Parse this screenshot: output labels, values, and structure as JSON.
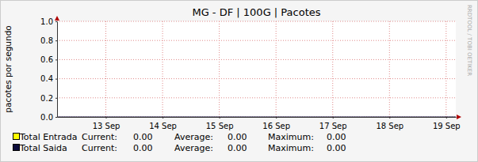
{
  "chart_data": {
    "type": "line",
    "title": "MG - DF | 100G | Pacotes",
    "y_label": "pacotes por segundo",
    "watermark": "RRDTOOL / TOBI OETIKER",
    "x": [
      12.64,
      13,
      14,
      15,
      16,
      17,
      18,
      19,
      19.67
    ],
    "xlim": [
      12.64,
      19.67
    ],
    "xticks": [
      {
        "value": 13.5,
        "label": "13 Sep"
      },
      {
        "value": 14.5,
        "label": "14 Sep"
      },
      {
        "value": 15.5,
        "label": "15 Sep"
      },
      {
        "value": 16.5,
        "label": "16 Sep"
      },
      {
        "value": 17.5,
        "label": "17 Sep"
      },
      {
        "value": 18.5,
        "label": "18 Sep"
      },
      {
        "value": 19.5,
        "label": "19 Sep"
      }
    ],
    "ylim": [
      0,
      1
    ],
    "yticks": [
      {
        "value": 0,
        "label": "0.0"
      },
      0.2,
      0.4,
      0.6,
      0.8,
      {
        "value": 1,
        "label": "1.0"
      }
    ],
    "grid": true,
    "legend": "bottom left",
    "stat_labels": [
      "Current:",
      "Average:",
      "Maximum:"
    ],
    "series": [
      {
        "name": "Total Entrada",
        "type": "area",
        "color": "#ffff00",
        "values": [
          0,
          0,
          0,
          0,
          0,
          0,
          0,
          0,
          0
        ],
        "stats": [
          0,
          0,
          0
        ],
        "stats_labels": [
          "0.00",
          "0.00",
          "0.00"
        ]
      },
      {
        "name": "Total Saida",
        "type": "line",
        "color": "#0b0b3b",
        "values": [
          0,
          0,
          0,
          0,
          0,
          0,
          0,
          0,
          0
        ],
        "stats": [
          0,
          0,
          0
        ],
        "stats_labels": [
          "0.00",
          "0.00",
          "0.00"
        ]
      }
    ]
  }
}
